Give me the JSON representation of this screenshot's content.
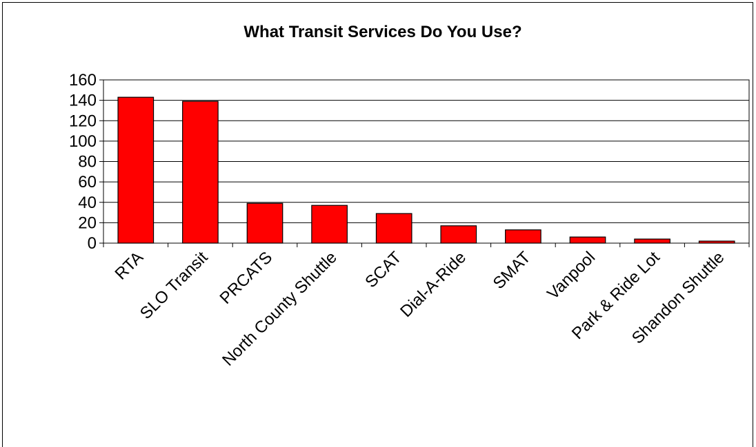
{
  "chart_data": {
    "type": "bar",
    "title": "What Transit Services Do You Use?",
    "xlabel": "",
    "ylabel": "",
    "categories": [
      "RTA",
      "SLO Transit",
      "PRCATS",
      "North County Shuttle",
      "SCAT",
      "Dial-A-Ride",
      "SMAT",
      "Vanpool",
      "Park & Ride Lot",
      "Shandon Shuttle"
    ],
    "values": [
      143,
      139,
      39,
      37,
      29,
      17,
      13,
      6,
      4,
      2
    ],
    "ylim": [
      0,
      160
    ],
    "yticks": [
      0,
      20,
      40,
      60,
      80,
      100,
      120,
      140,
      160
    ],
    "grid": true,
    "legend": "none",
    "colors": {
      "bar": "#ff0000",
      "bar_border": "#000000",
      "grid": "#000000"
    }
  }
}
